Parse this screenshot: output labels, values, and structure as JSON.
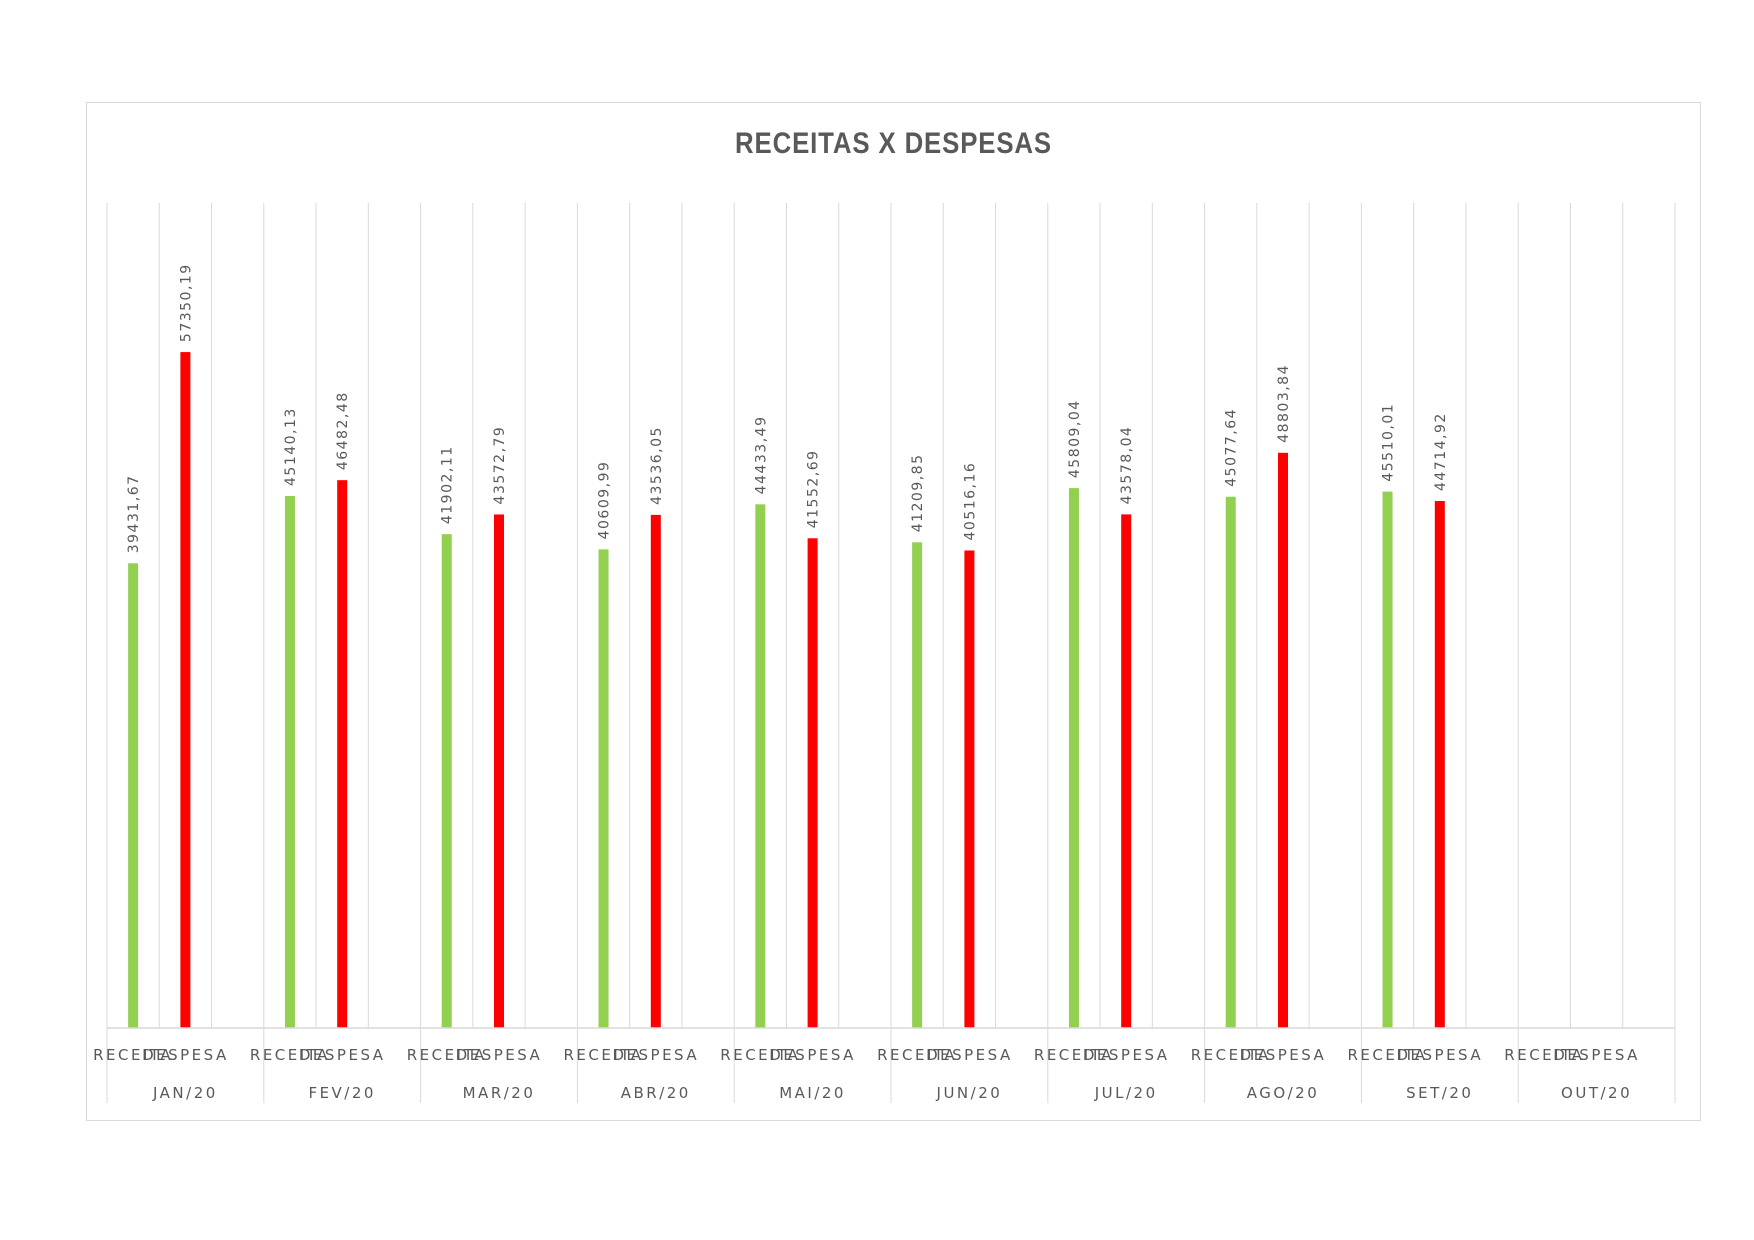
{
  "chart_data": {
    "type": "bar",
    "title": "RECEITAS X DESPESAS",
    "xlabel": "",
    "ylabel": "",
    "ylim": [
      0,
      70000
    ],
    "grid": "vertical",
    "legend": "none",
    "groups": [
      "JAN/20",
      "FEV/20",
      "MAR/20",
      "ABR/20",
      "MAI/20",
      "JUN/20",
      "JUL/20",
      "AGO/20",
      "SET/20",
      "OUT/20"
    ],
    "subcategories": [
      "RECEITA",
      "DESPESA"
    ],
    "series": [
      {
        "color": "#92d050",
        "values": [
          39431.67,
          45140.13,
          41902.11,
          40609.99,
          44433.49,
          41209.85,
          45809.04,
          45077.64,
          45510.01,
          null
        ],
        "labels": [
          "39431,67",
          "45140,13",
          "41902,11",
          "40609,99",
          "44433,49",
          "41209,85",
          "45809,04",
          "45077,64",
          "45510,01",
          ""
        ]
      },
      {
        "color": "#ff0000",
        "values": [
          57350.19,
          46482.48,
          43572.79,
          43536.05,
          41552.69,
          40516.16,
          43578.04,
          48803.84,
          44714.92,
          null
        ],
        "labels": [
          "57350,19",
          "46482,48",
          "43572,79",
          "43536,05",
          "41552,69",
          "40516,16",
          "43578,04",
          "48803,84",
          "44714,92",
          ""
        ]
      }
    ]
  }
}
